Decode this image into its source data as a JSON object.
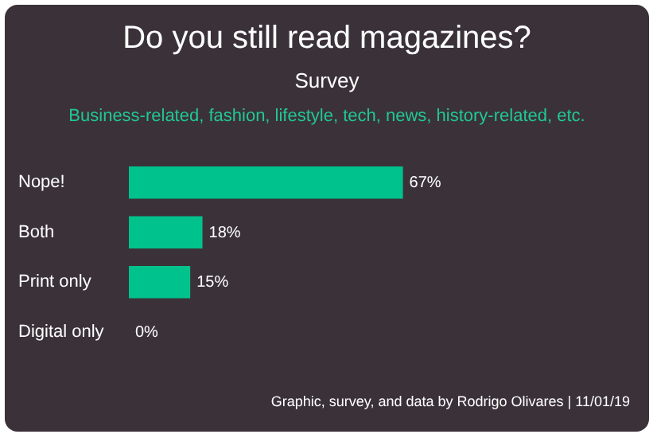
{
  "chart_data": {
    "type": "bar",
    "orientation": "horizontal",
    "title": "Do you still read magazines?",
    "subtitle": "Survey",
    "annotations": [
      "Business-related, fashion, lifestyle, tech, news, history-related, etc.",
      "Graphic, survey, and data by Rodrigo Olivares | 11/01/19"
    ],
    "categories": [
      "Nope!",
      "Both",
      "Print only",
      "Digital only"
    ],
    "values": [
      67,
      18,
      15,
      0
    ],
    "value_labels": [
      "67%",
      "18%",
      "15%",
      "0%"
    ],
    "color": "#00c28c"
  }
}
